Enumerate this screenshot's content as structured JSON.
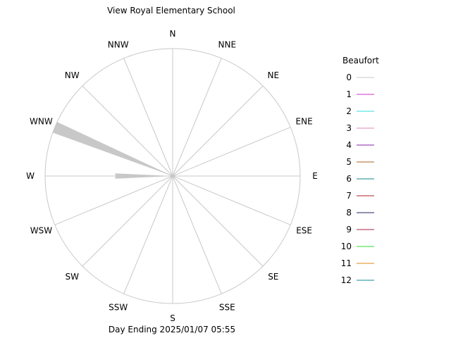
{
  "chart_data": {
    "type": "wind-rose",
    "title": "View Royal Elementary School",
    "footer": "Day Ending 2025/01/07 05:55",
    "directions": [
      "N",
      "NNE",
      "NE",
      "ENE",
      "E",
      "ESE",
      "SE",
      "SSE",
      "S",
      "SSW",
      "SW",
      "WSW",
      "W",
      "WNW",
      "NW",
      "NNW"
    ],
    "legend": {
      "title": "Beaufort",
      "placement": "right",
      "entries": [
        {
          "label": "0",
          "color": "#c8c8c8"
        },
        {
          "label": "1",
          "color": "#cc33cc"
        },
        {
          "label": "2",
          "color": "#33dddd"
        },
        {
          "label": "3",
          "color": "#dd88bb"
        },
        {
          "label": "4",
          "color": "#8822aa"
        },
        {
          "label": "5",
          "color": "#aa6622"
        },
        {
          "label": "6",
          "color": "#118888"
        },
        {
          "label": "7",
          "color": "#aa2222"
        },
        {
          "label": "8",
          "color": "#222266"
        },
        {
          "label": "9",
          "color": "#aa2244"
        },
        {
          "label": "10",
          "color": "#33dd33"
        },
        {
          "label": "11",
          "color": "#dd8811"
        },
        {
          "label": "12",
          "color": "#118899"
        }
      ]
    },
    "series": [
      {
        "beaufort": "0",
        "values": [
          0,
          0,
          0,
          0,
          0,
          0,
          0,
          0,
          0,
          0,
          0,
          0,
          0.45,
          1.0,
          0,
          0
        ]
      }
    ],
    "rmax": 1.0,
    "grid": true
  }
}
